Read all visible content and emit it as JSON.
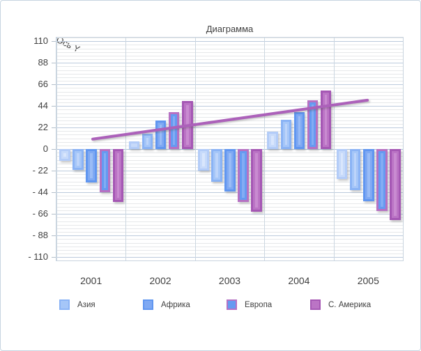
{
  "chart_data": {
    "type": "bar",
    "title": "Диаграмма",
    "y_axis_title": "Ось Y",
    "categories": [
      "2001",
      "2002",
      "2003",
      "2004",
      "2005"
    ],
    "series": [
      {
        "name": "",
        "values": [
          -12,
          8,
          -22,
          18,
          -30
        ],
        "border": "#b3ccf8",
        "fill": "#c7dafa",
        "fill_light": "#d9e6fc",
        "in_legend": false
      },
      {
        "name": "Азия",
        "values": [
          -21,
          16,
          -33,
          30,
          -42
        ],
        "border": "#8ab3f5",
        "fill": "#a5c6f8",
        "fill_light": "#bdd4fa",
        "in_legend": true
      },
      {
        "name": "Африка",
        "values": [
          -34,
          29,
          -43,
          38,
          -53
        ],
        "border": "#6096f0",
        "fill": "#7fa9f3",
        "fill_light": "#9abcf6",
        "in_legend": true
      },
      {
        "name": "Европа",
        "values": [
          -44,
          38,
          -54,
          50,
          -63
        ],
        "border": "#b671c3",
        "fill": "#659af1",
        "fill_light": "#82acf4",
        "in_legend": true
      },
      {
        "name": "С. Америка",
        "values": [
          -54,
          49,
          -64,
          60,
          -72
        ],
        "border": "#a557b4",
        "fill": "#bb74c5",
        "fill_light": "#c98bd1",
        "in_legend": true
      }
    ],
    "trend_line": {
      "values": [
        10,
        20,
        30,
        40,
        50
      ],
      "color": "#ac61ba"
    },
    "y_ticks": [
      110,
      88,
      66,
      44,
      22,
      0,
      -22,
      -44,
      -66,
      -88,
      -110
    ],
    "y_tick_labels": [
      "110",
      "88",
      "66",
      "44",
      "22",
      "0",
      "- 22",
      "- 44",
      "- 66",
      "- 88",
      "- 110"
    ],
    "ylim": [
      -110,
      110
    ],
    "grid": true,
    "legend_position": "bottom",
    "colors": {
      "major_gridline": "#bccadd",
      "minor_gridline": "#e6e8ea",
      "vertical_gridline": "#ccd7e1",
      "zero_line": "#a9bdd7",
      "text": "#404040"
    }
  }
}
